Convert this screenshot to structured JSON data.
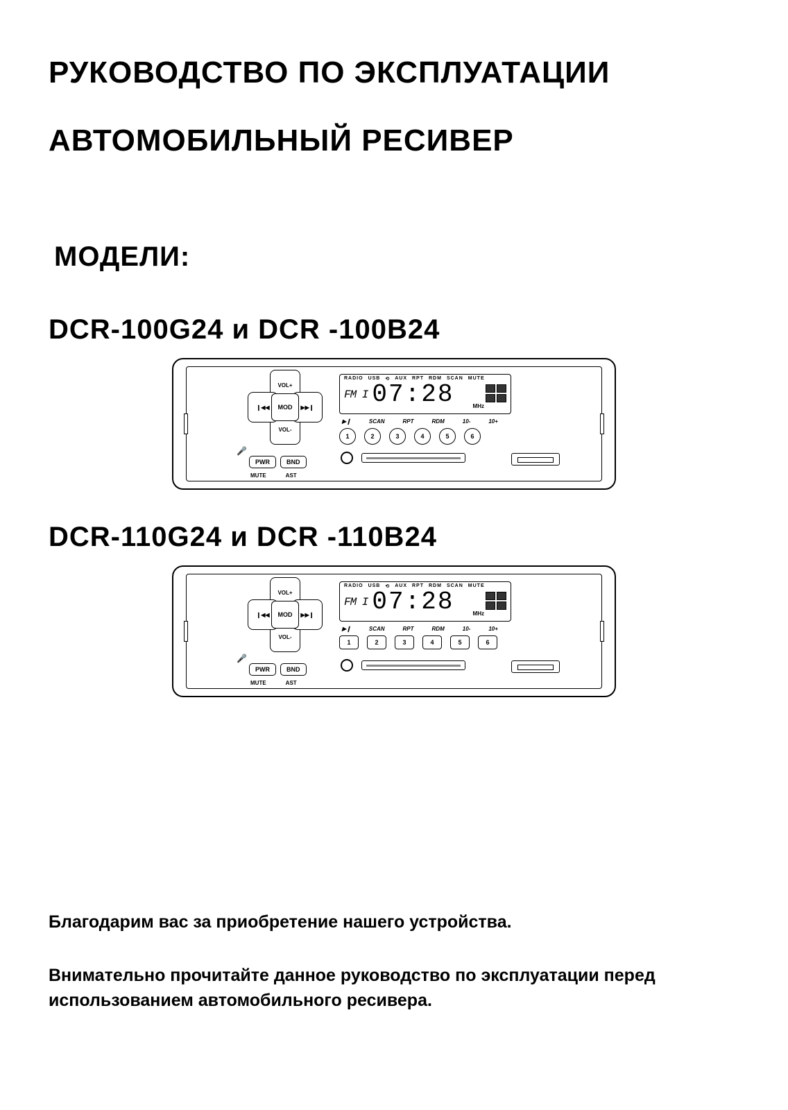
{
  "title_line1": "РУКОВОДСТВО ПО ЭКСПЛУАТАЦИИ",
  "title_line2": "АВТОМОБИЛЬНЫЙ РЕСИВЕР",
  "models_label": "МОДЕЛИ:",
  "model_a": "DCR-100G24 и DCR -100B24",
  "model_b": "DCR-110G24 и DCR -110B24",
  "device": {
    "vol_plus": "VOL+",
    "vol_minus": "VOL-",
    "prev": "❙◀◀",
    "next": "▶▶❙",
    "mod": "MOD",
    "pwr": "PWR",
    "bnd": "BND",
    "mute": "MUTE",
    "ast": "AST",
    "lcd_top": [
      "RADIO",
      "USB",
      "⟲",
      "AUX",
      "RPT",
      "RDM",
      "SCAN",
      "MUTE"
    ],
    "fm": "FM I",
    "time": "07:28",
    "mhz": "MHz",
    "preset_labels": [
      "▶❙",
      "SCAN",
      "RPT",
      "RDM",
      "10-",
      "10+"
    ],
    "presets": [
      "1",
      "2",
      "3",
      "4",
      "5",
      "6"
    ]
  },
  "footer_p1": "Благодарим вас за приобретение нашего устройства.",
  "footer_p2": "Внимательно прочитайте данное руководство по эксплуатации перед использованием автомобильного ресивера.",
  "colors": {
    "text": "#000000",
    "bg": "#ffffff"
  }
}
